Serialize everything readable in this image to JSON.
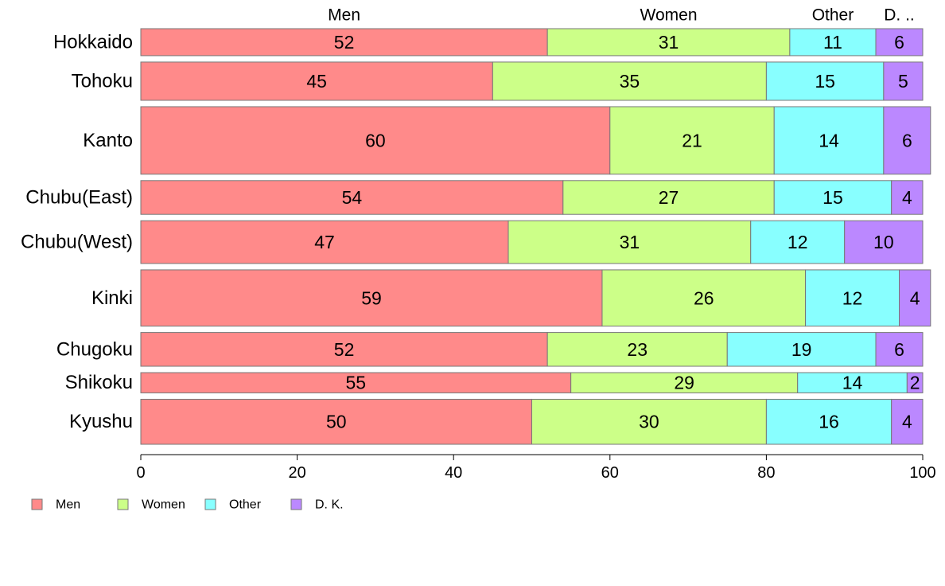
{
  "chart_data": {
    "type": "bar",
    "orientation": "horizontal",
    "stacked": true,
    "categories": [
      "Hokkaido",
      "Tohoku",
      "Kanto",
      "Chubu(East)",
      "Chubu(West)",
      "Kinki",
      "Chugoku",
      "Shikoku",
      "Kyushu"
    ],
    "category_weights": [
      0.6,
      0.85,
      1.5,
      0.75,
      0.95,
      1.25,
      0.75,
      0.45,
      1.0
    ],
    "series": [
      {
        "name": "Men",
        "color": "#ff8a8a",
        "values": [
          52,
          45,
          60,
          54,
          47,
          59,
          52,
          55,
          50
        ]
      },
      {
        "name": "Women",
        "color": "#ccff88",
        "values": [
          31,
          35,
          21,
          27,
          31,
          26,
          23,
          29,
          30
        ]
      },
      {
        "name": "Other",
        "color": "#88ffff",
        "values": [
          11,
          15,
          14,
          15,
          12,
          12,
          19,
          14,
          16
        ]
      },
      {
        "name": "D. K.",
        "color": "#bb88ff",
        "values": [
          6,
          5,
          6,
          4,
          10,
          4,
          6,
          2,
          4
        ]
      }
    ],
    "column_headers": [
      "Men",
      "Women",
      "Other",
      "D. .."
    ],
    "column_header_positions": [
      52,
      31,
      11,
      6
    ],
    "xlim": [
      0,
      100
    ],
    "xticks": [
      "0",
      "20",
      "40",
      "60",
      "80",
      "100"
    ],
    "legend_position": "bottom-left",
    "grid": false
  }
}
